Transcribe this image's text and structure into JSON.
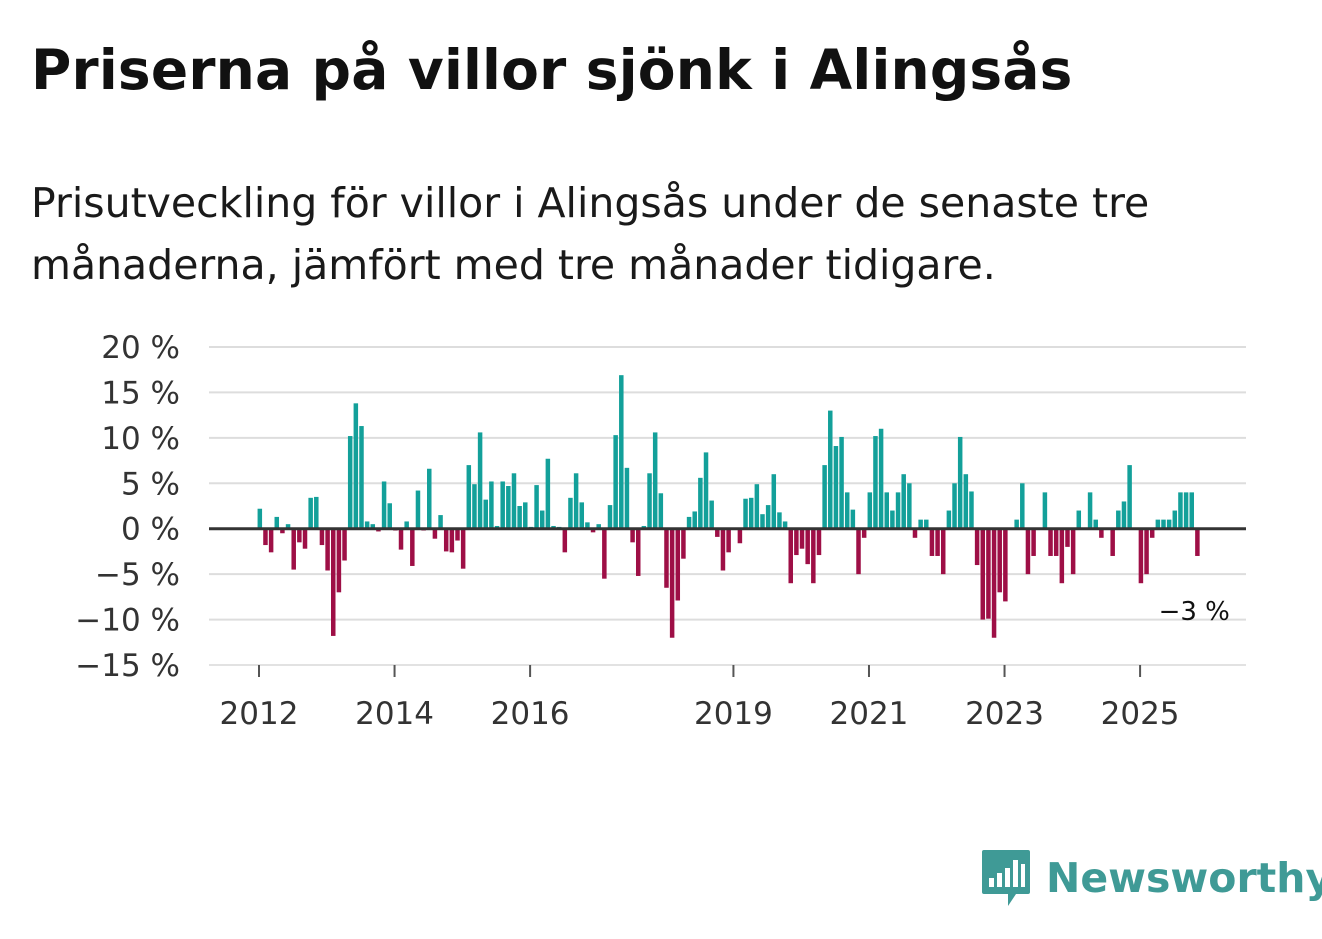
{
  "title": "Priserna på villor sjönk i Alingsås",
  "subtitle": "Prisutveckling för villor i Alingsås under de senaste tre månaderna, jämfört med tre månader tidigare.",
  "brand": {
    "name": "Newsworthy",
    "icon": "newsworthy-logo-icon",
    "color": "#3f9a96"
  },
  "colors": {
    "positive": "#13a09a",
    "negative": "#9e0f46",
    "grid": "#dddddd",
    "zero": "#333333"
  },
  "chart_data": {
    "type": "bar",
    "title": "Prisutveckling för villor i Alingsås",
    "xlabel": "",
    "ylabel": "",
    "unit": " %",
    "ylim": [
      -15,
      20
    ],
    "yticks": [
      20,
      15,
      10,
      5,
      0,
      -5,
      -10,
      -15
    ],
    "ytick_labels": [
      "20 %",
      "15 %",
      "10 %",
      "5 %",
      "0 %",
      "−5 %",
      "−10 %",
      "−15 %"
    ],
    "start": "2012-01",
    "xticks": [
      {
        "label": "2012",
        "year": 2012
      },
      {
        "label": "2014",
        "year": 2014
      },
      {
        "label": "2016",
        "year": 2016
      },
      {
        "label": "2019",
        "year": 2019
      },
      {
        "label": "2021",
        "year": 2021
      },
      {
        "label": "2023",
        "year": 2023
      },
      {
        "label": "2025",
        "year": 2025
      }
    ],
    "values": [
      2.2,
      -1.8,
      -2.6,
      1.3,
      -0.5,
      0.5,
      -4.5,
      -1.5,
      -2.2,
      3.4,
      3.5,
      -1.8,
      -4.6,
      -11.8,
      -7.0,
      -3.5,
      10.2,
      13.8,
      11.3,
      0.8,
      0.5,
      -0.3,
      5.2,
      2.8,
      -0.2,
      -2.3,
      0.8,
      -4.1,
      4.2,
      -0.2,
      6.6,
      -1.1,
      1.5,
      -2.5,
      -2.6,
      -1.3,
      -4.4,
      7.0,
      4.9,
      10.6,
      3.2,
      5.2,
      0.3,
      5.2,
      4.7,
      6.1,
      2.5,
      2.9,
      0.2,
      4.8,
      2.0,
      7.7,
      0.3,
      0.2,
      -2.6,
      3.4,
      6.1,
      2.9,
      0.7,
      -0.4,
      0.5,
      -5.5,
      2.6,
      10.3,
      16.9,
      6.7,
      -1.5,
      -5.2,
      0.3,
      6.1,
      10.6,
      3.9,
      -6.5,
      -12.0,
      -7.9,
      -3.3,
      1.3,
      1.9,
      5.6,
      8.4,
      3.1,
      -0.9,
      -4.6,
      -2.6,
      0.1,
      -1.6,
      3.3,
      3.4,
      4.9,
      1.6,
      2.6,
      6.0,
      1.8,
      0.8,
      -6.0,
      -2.9,
      -2.2,
      -3.9,
      -6.0,
      -2.9,
      7.0,
      13.0,
      9.1,
      10.1,
      4.0,
      2.1,
      -5.0,
      -1.0,
      4.0,
      10.2,
      11.0,
      4.0,
      2.0,
      4.0,
      6.0,
      5.0,
      -1.0,
      1.0,
      1.0,
      -3.0,
      -3.0,
      -5.0,
      2.0,
      5.0,
      10.1,
      6.0,
      4.1,
      -4.0,
      -10.0,
      -9.9,
      -12.0,
      -7.0,
      -8.0,
      0.0,
      1.0,
      5.0,
      -5.0,
      -3.0,
      0.0,
      4.0,
      -3.0,
      -3.0,
      -6.0,
      -2.0,
      -5.0,
      2.0,
      -0.1,
      4.0,
      1.0,
      -1.0,
      0.0,
      -3.0,
      2.0,
      3.0,
      7.0,
      0.0,
      -6.0,
      -5.0,
      -1.0,
      1.0,
      1.0,
      1.0,
      2.0,
      4.0,
      4.0,
      4.0,
      -3.0
    ],
    "last_value_label": "−3 %"
  }
}
